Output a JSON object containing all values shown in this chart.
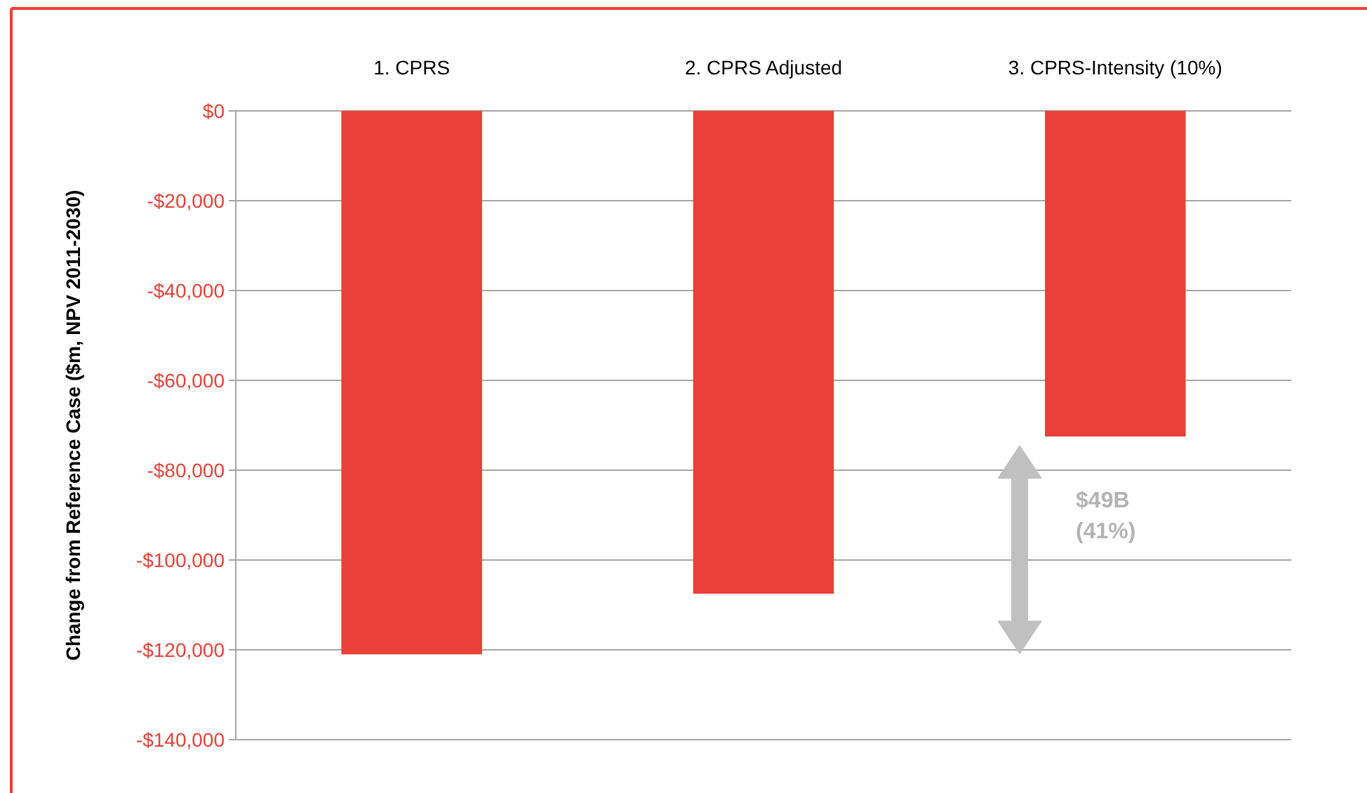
{
  "chart_data": {
    "type": "bar",
    "ylabel": "Change from Reference Case ($m, NPV 2011-2030)",
    "categories": [
      "1. CPRS",
      "2. CPRS Adjusted",
      "3. CPRS-Intensity (10%)"
    ],
    "values": [
      -121000,
      -107500,
      -72500
    ],
    "color": "#e94037",
    "ylim": [
      -140000,
      0
    ],
    "yticks": [
      {
        "value": -140000,
        "label": "-$140,000"
      },
      {
        "value": -120000,
        "label": "-$120,000"
      },
      {
        "value": -100000,
        "label": "-$100,000"
      },
      {
        "value": -80000,
        "label": "-$80,000"
      },
      {
        "value": -60000,
        "label": "-$60,000"
      },
      {
        "value": -40000,
        "label": "-$40,000"
      },
      {
        "value": -20000,
        "label": "-$20,000"
      },
      {
        "value": 0,
        "label": "$0"
      }
    ],
    "grid": "y",
    "annotations": [
      "$49B",
      "(41%)"
    ]
  }
}
